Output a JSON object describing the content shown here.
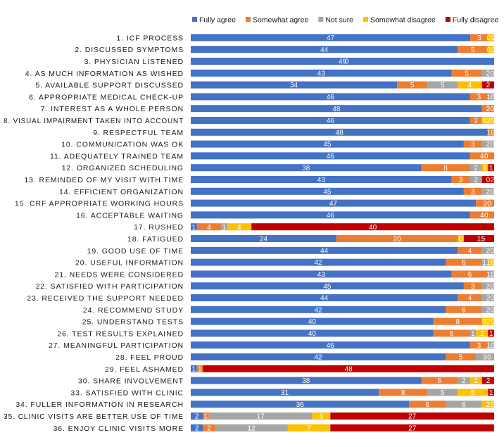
{
  "chart_data": {
    "type": "bar",
    "orientation": "horizontal",
    "stacked": true,
    "title": "",
    "xlabel": "",
    "ylabel": "",
    "grid": false,
    "legend_position": "top-right",
    "categories": [
      "1. ICF PROCESS",
      "2. DISCUSSED SYMPTOMS",
      "3. PHYSICIAN LISTENED",
      "4. AS MUCH INFORMATION AS WISHED",
      "5. AVAILABLE SUPPORT DISCUSSED",
      "6. APPROPRIATE MEDICAL CHECK-UP",
      "7. INTEREST AS A WHOLE PERSON",
      "8. VISUAL IMPAIRMENT TAKEN INTO ACCOUNT",
      "9. RESPECTFUL TEAM",
      "10. COMMUNICATION WAS OK",
      "11. ADEQUATELY TRAINED TEAM",
      "12. ORGANIZED SCHEDULING",
      "13. REMINDED OF MY VISIT WITH TIME",
      "14. EFFICIENT ORGANIZATION",
      "15. CRF APPROPRIATE WORKING HOURS",
      "16. ACCEPTABLE WAITING",
      "17. RUSHED",
      "18. FATIGUED",
      "19. GOOD USE OF TIME",
      "20. USEFUL INFORMATION",
      "21. NEEDS WERE CONSIDERED",
      "22. SATISFIED WITH PARTICIPATION",
      "23. RECEIVED THE SUPPORT NEEDED",
      "24. RECOMMEND STUDY",
      "25. UNDERSTAND TESTS",
      "26. TEST RESULTS EXPLAINED",
      "27. MEANINGFUL PARTICIPATION",
      "28. FEEL PROUD",
      "29. FEEL ASHAMED",
      "30. SHARE INVOLVEMENT",
      "33. SATISFIED WITH CLINIC",
      "34. FULLER INFORMATION IN RESEARCH",
      "35. CLINIC VISITS ARE BETTER USE OF TIME",
      "36. ENJOY CLINIC VISITS MORE"
    ],
    "series": [
      {
        "name": "Fully agree",
        "color": "#4472C4",
        "values": [
          47,
          44,
          49,
          43,
          34,
          46,
          48,
          46,
          48,
          45,
          46,
          38,
          43,
          45,
          47,
          46,
          1,
          24,
          44,
          42,
          43,
          45,
          44,
          42,
          40,
          40,
          46,
          42,
          1,
          38,
          31,
          36,
          2,
          2
        ]
      },
      {
        "name": "Somewhat agree",
        "color": "#ED7D31",
        "values": [
          3,
          5,
          0,
          5,
          5,
          3,
          2,
          2,
          1,
          3,
          4,
          8,
          3,
          3,
          3,
          4,
          4,
          20,
          4,
          6,
          6,
          3,
          4,
          6,
          8,
          6,
          3,
          5,
          1,
          6,
          8,
          6,
          1,
          2
        ]
      },
      {
        "name": "Not sure",
        "color": "#A5A5A5",
        "values": [
          0,
          0,
          0,
          2,
          5,
          1,
          0,
          0,
          0,
          2,
          0,
          2,
          2,
          2,
          0,
          0,
          1,
          0,
          2,
          1,
          1,
          2,
          2,
          2,
          0,
          1,
          1,
          3,
          0,
          2,
          5,
          6,
          17,
          12
        ]
      },
      {
        "name": "Somewhat disagree",
        "color": "#FFC000",
        "values": [
          1,
          1,
          0,
          0,
          4,
          0,
          0,
          2,
          0,
          0,
          0,
          1,
          0,
          0,
          0,
          0,
          4,
          1,
          0,
          1,
          0,
          0,
          0,
          0,
          2,
          2,
          0,
          0,
          0,
          2,
          5,
          2,
          3,
          7
        ]
      },
      {
        "name": "Fully disagree",
        "color": "#C00000",
        "values": [
          0,
          0,
          0,
          0,
          2,
          0,
          0,
          0,
          0,
          0,
          0,
          1,
          2,
          0,
          0,
          0,
          40,
          5,
          0,
          0,
          0,
          0,
          0,
          0,
          0,
          1,
          0,
          0,
          48,
          2,
          1,
          0,
          27,
          27
        ]
      }
    ],
    "value_labels": [
      [
        "47",
        "3",
        "0",
        "1"
      ],
      [
        "44",
        "5",
        "0",
        "1"
      ],
      [
        "49",
        "0"
      ],
      [
        "43",
        "5",
        "2",
        "0"
      ],
      [
        "34",
        "5",
        "5",
        "4",
        "2"
      ],
      [
        "46",
        "3",
        "1",
        "0"
      ],
      [
        "48",
        "2",
        "0"
      ],
      [
        "46",
        "2",
        "0",
        "2",
        "0"
      ],
      [
        "48",
        "1",
        "0"
      ],
      [
        "45",
        "3",
        "2",
        "0"
      ],
      [
        "46",
        "4",
        "0"
      ],
      [
        "38",
        "8",
        "2",
        "1",
        "1"
      ],
      [
        "43",
        "3",
        "2",
        "0",
        "2"
      ],
      [
        "45",
        "3",
        "2",
        "0"
      ],
      [
        "47",
        "3",
        "0"
      ],
      [
        "46",
        "4",
        "0"
      ],
      [
        "1",
        "4",
        "1",
        "4",
        "40"
      ],
      [
        "24",
        "20",
        "0",
        "1",
        "5"
      ],
      [
        "44",
        "4",
        "2",
        "0"
      ],
      [
        "42",
        "6",
        "1",
        "1",
        "0"
      ],
      [
        "43",
        "6",
        "1",
        "0"
      ],
      [
        "45",
        "3",
        "2",
        "0"
      ],
      [
        "44",
        "4",
        "2",
        "0"
      ],
      [
        "42",
        "6",
        "2",
        "0"
      ],
      [
        "40",
        "8",
        "0",
        "2",
        "0"
      ],
      [
        "40",
        "6",
        "1",
        "2",
        "1"
      ],
      [
        "46",
        "3",
        "1",
        "0"
      ],
      [
        "42",
        "5",
        "3",
        "0"
      ],
      [
        "1",
        "1",
        "48"
      ],
      [
        "38",
        "6",
        "2",
        "2",
        "2"
      ],
      [
        "31",
        "8",
        "5",
        "5",
        "1"
      ],
      [
        "36",
        "6",
        "6",
        "2",
        "0"
      ],
      [
        "2",
        "1",
        "17",
        "3",
        "27"
      ],
      [
        "2",
        "2",
        "12",
        "7",
        "27"
      ]
    ]
  }
}
